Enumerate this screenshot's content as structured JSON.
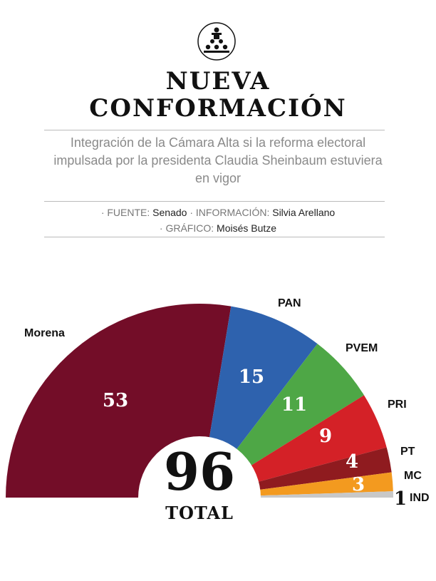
{
  "header": {
    "icon": "parliament-podium-icon",
    "title_line1": "NUEVA",
    "title_line2": "CONFORMACIÓN",
    "subtitle": "Integración de la Cámara Alta si la reforma electoral impulsada por la presidenta Claudia Sheinbaum estuviera en vigor",
    "credits": {
      "source_key": "· FUENTE:",
      "source_val": "Senado",
      "info_key": "· INFORMACIÓN:",
      "info_val": "Silvia Arellano",
      "graphic_key": "· GRÁFICO:",
      "graphic_val": "Moisés Butze"
    }
  },
  "chart_data": {
    "type": "pie",
    "subtype": "semicircle-donut",
    "categories": [
      "Morena",
      "PAN",
      "PVEM",
      "PRI",
      "PT",
      "MC",
      "IND"
    ],
    "values": [
      53,
      15,
      11,
      9,
      4,
      3,
      1
    ],
    "colors": [
      "#730d28",
      "#2e62ae",
      "#4ea746",
      "#d42127",
      "#8f1b1f",
      "#f39a1f",
      "#c8c8c8"
    ],
    "total": "96",
    "total_label": "TOTAL",
    "value_labels": [
      "53",
      "15",
      "11",
      "9",
      "4",
      "3",
      "1"
    ]
  }
}
